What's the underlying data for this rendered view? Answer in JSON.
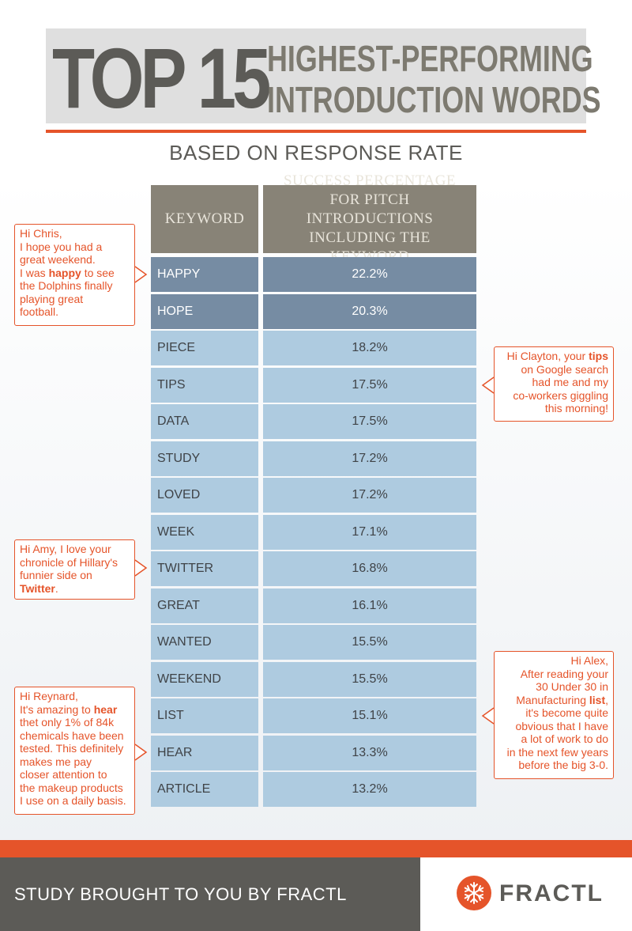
{
  "header": {
    "top": "TOP",
    "number": "15",
    "line1": "HIGHEST-PERFORMING",
    "line2": "INTRODUCTION WORDS",
    "subtitle": "BASED ON RESPONSE RATE"
  },
  "chart_data": {
    "type": "table",
    "title": "TOP 15 HIGHEST-PERFORMING INTRODUCTION WORDS",
    "subtitle": "BASED ON RESPONSE RATE",
    "columns": [
      "KEYWORD",
      "SUCCESS PERCENTAGE FOR PITCH INTRODUCTIONS INCLUDING THE KEYWORD"
    ],
    "rows": [
      {
        "keyword": "HAPPY",
        "value": 22.2,
        "label": "22.2%"
      },
      {
        "keyword": "HOPE",
        "value": 20.3,
        "label": "20.3%"
      },
      {
        "keyword": "PIECE",
        "value": 18.2,
        "label": "18.2%"
      },
      {
        "keyword": "TIPS",
        "value": 17.5,
        "label": "17.5%"
      },
      {
        "keyword": "DATA",
        "value": 17.5,
        "label": "17.5%"
      },
      {
        "keyword": "STUDY",
        "value": 17.2,
        "label": "17.2%"
      },
      {
        "keyword": "LOVED",
        "value": 17.2,
        "label": "17.2%"
      },
      {
        "keyword": "WEEK",
        "value": 17.1,
        "label": "17.1%"
      },
      {
        "keyword": "TWITTER",
        "value": 16.8,
        "label": "16.8%"
      },
      {
        "keyword": "GREAT",
        "value": 16.1,
        "label": "16.1%"
      },
      {
        "keyword": "WANTED",
        "value": 15.5,
        "label": "15.5%"
      },
      {
        "keyword": "WEEKEND",
        "value": 15.5,
        "label": "15.5%"
      },
      {
        "keyword": "LIST",
        "value": 15.1,
        "label": "15.1%"
      },
      {
        "keyword": "HEAR",
        "value": 13.3,
        "label": "13.3%"
      },
      {
        "keyword": "ARTICLE",
        "value": 13.2,
        "label": "13.2%"
      }
    ],
    "highlight_color": "#768ca3",
    "row_color": "#aecbe0",
    "header_color": "#888377"
  },
  "callouts": [
    {
      "id": "chris",
      "side": "left",
      "text": "Hi Chris,\nI hope you had a\ngreat weekend.\nI was ",
      "bold": "happy",
      "after": " to see\nthe Dolphins finally\nplaying great\nfootball."
    },
    {
      "id": "clayton",
      "side": "right",
      "text": "Hi Clayton, your ",
      "bold": "tips",
      "after": "\non Google search\nhad me and my\nco-workers giggling\nthis morning!"
    },
    {
      "id": "amy",
      "side": "left",
      "text": "Hi Amy, I love your\nchronicle of Hillary's\nfunnier side on\n",
      "bold": "Twitter",
      "after": "."
    },
    {
      "id": "alex",
      "side": "right",
      "text": "Hi Alex,\nAfter reading your\n30 Under 30 in\nManufacturing ",
      "bold": "list",
      "after": ",\nit's become quite\nobvious that I have\na lot of work to do\nin the next few years\nbefore the big 3-0."
    },
    {
      "id": "reynard",
      "side": "left",
      "text": "Hi Reynard,\nIt's amazing to ",
      "bold": "hear",
      "after": "\nthet only 1% of 84k\nchemicals have been\ntested. This definitely\nmakes me pay\ncloser attention to\nthe makeup products\nI use on a daily basis."
    }
  ],
  "footer": {
    "credit": "STUDY BROUGHT TO YOU BY FRACTL",
    "brand": "FRACTL",
    "logo_icon": "snowflake-icon"
  }
}
